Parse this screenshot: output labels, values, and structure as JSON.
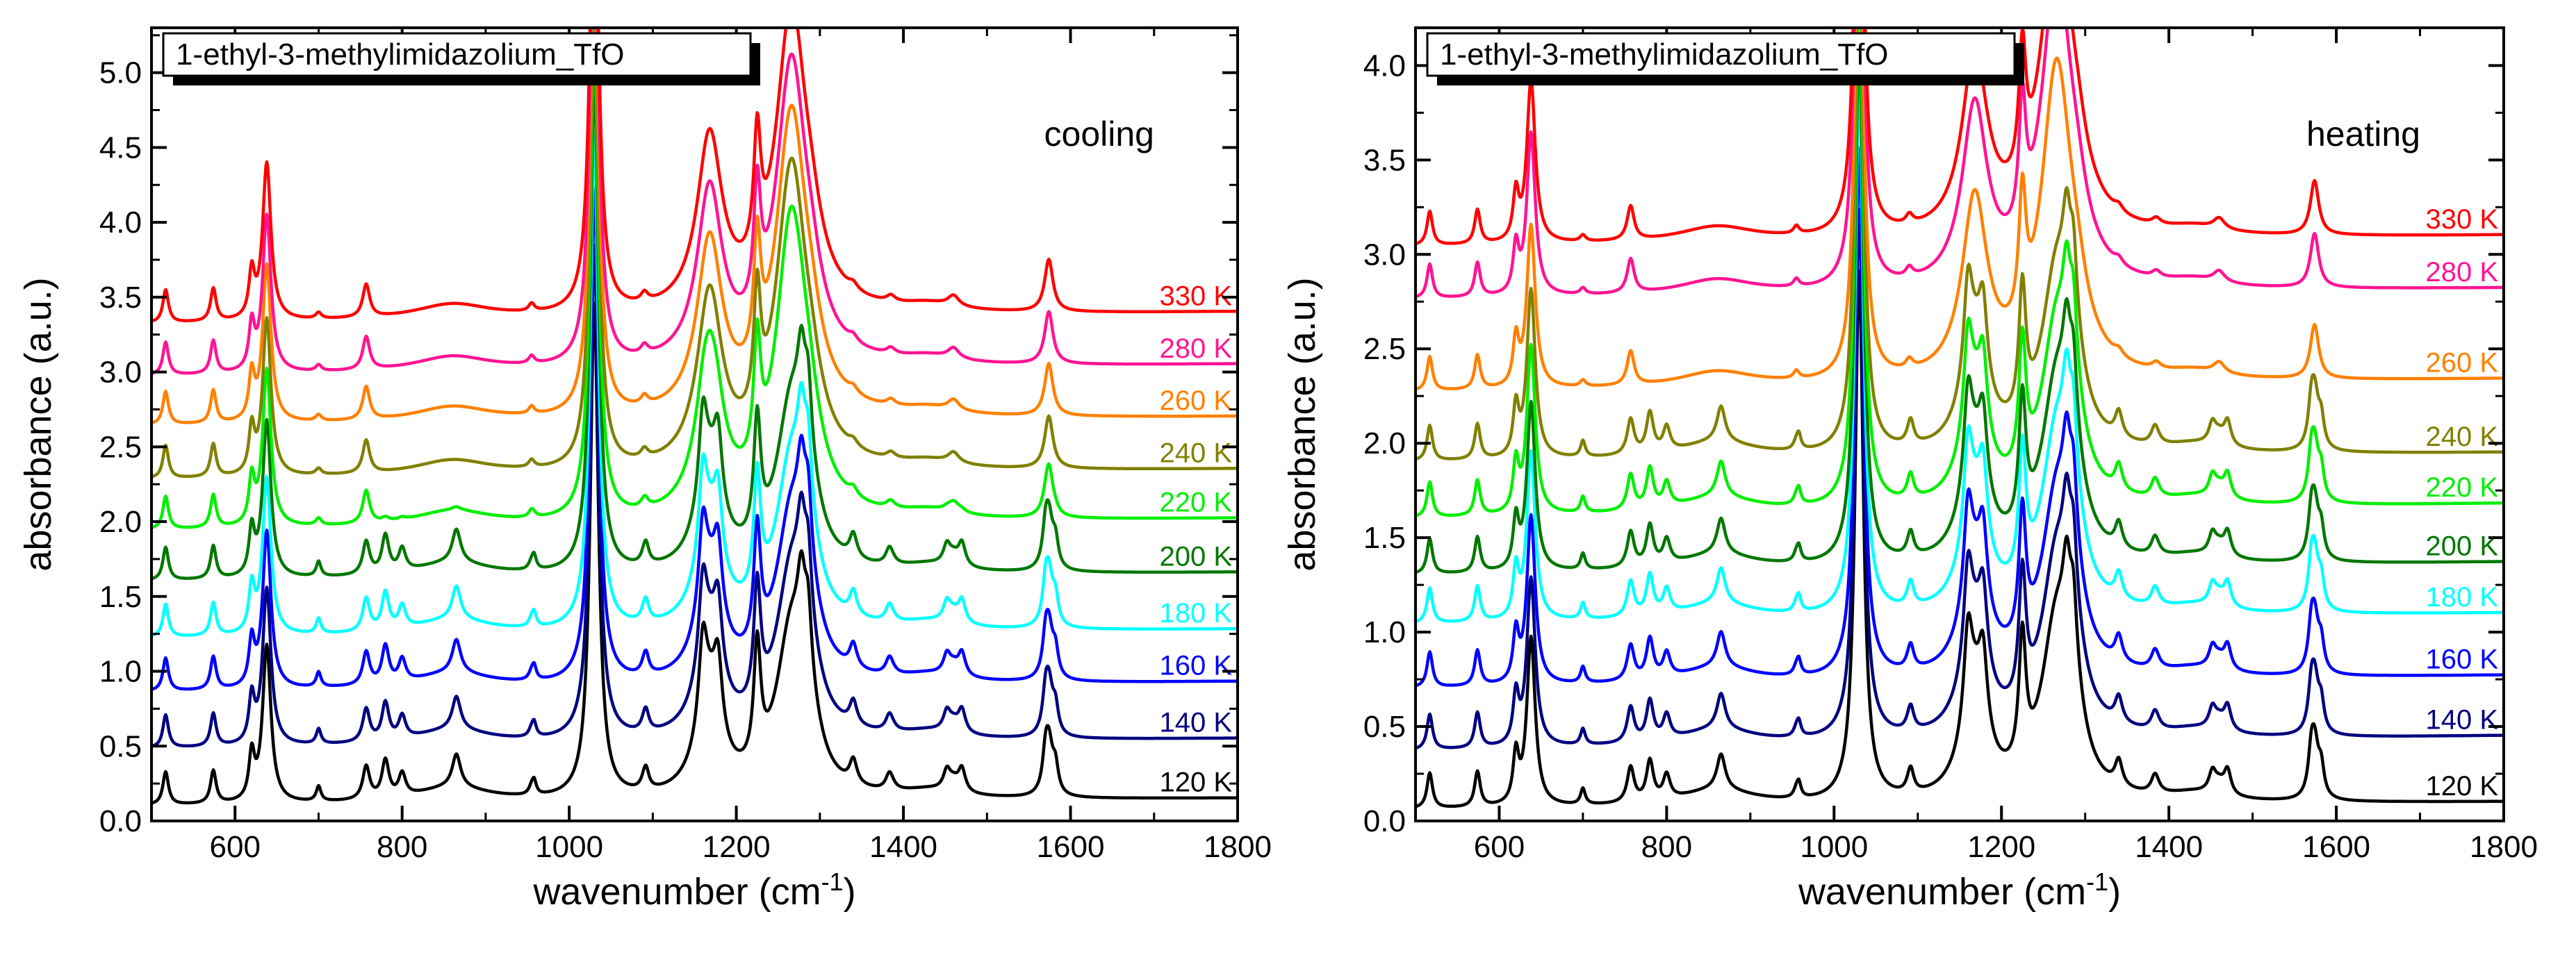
{
  "chart_data": [
    {
      "type": "line",
      "title": "1-ethyl-3-methylimidazolium_TfO",
      "mode_label": "cooling",
      "xlabel": "wavenumber (cm",
      "xlabel_sup": "-1",
      "xlabel_close": ")",
      "ylabel": "absorbance (a.u.)",
      "xlim": [
        500,
        1800
      ],
      "ylim": [
        0,
        5.3
      ],
      "xticks": [
        600,
        800,
        1000,
        1200,
        1400,
        1600,
        1800
      ],
      "yticks": [
        0.0,
        0.5,
        1.0,
        1.5,
        2.0,
        2.5,
        3.0,
        3.5,
        4.0,
        4.5,
        5.0
      ],
      "ytick_labels": [
        "0.0",
        "0.5",
        "1.0",
        "1.5",
        "2.0",
        "2.5",
        "3.0",
        "3.5",
        "4.0",
        "4.5",
        "5.0"
      ],
      "grid": false,
      "series": [
        {
          "name": "120 K",
          "color": "#000000",
          "offset": 0.1,
          "tail": 0.15,
          "crystalline": 1.0,
          "scale": 1.0
        },
        {
          "name": "140 K",
          "color": "#000080",
          "offset": 0.48,
          "tail": 0.55,
          "crystalline": 1.0,
          "scale": 1.0
        },
        {
          "name": "160 K",
          "color": "#0000ff",
          "offset": 0.86,
          "tail": 0.93,
          "crystalline": 1.0,
          "scale": 1.0
        },
        {
          "name": "180 K",
          "color": "#00ffff",
          "offset": 1.22,
          "tail": 1.28,
          "crystalline": 1.0,
          "scale": 1.0
        },
        {
          "name": "200 K",
          "color": "#007700",
          "offset": 1.6,
          "tail": 1.66,
          "crystalline": 1.0,
          "scale": 1.0
        },
        {
          "name": "220 K",
          "color": "#00ee00",
          "offset": 1.94,
          "tail": 2.02,
          "crystalline": 0.1,
          "scale": 1.0
        },
        {
          "name": "240 K",
          "color": "#808000",
          "offset": 2.28,
          "tail": 2.35,
          "crystalline": 0.0,
          "scale": 1.0
        },
        {
          "name": "260 K",
          "color": "#ff8000",
          "offset": 2.64,
          "tail": 2.7,
          "crystalline": 0.0,
          "scale": 1.0
        },
        {
          "name": "280 K",
          "color": "#ff1493",
          "offset": 2.97,
          "tail": 3.05,
          "crystalline": 0.0,
          "scale": 1.0
        },
        {
          "name": "330 K",
          "color": "#ff0000",
          "offset": 3.32,
          "tail": 3.4,
          "crystalline": 0.0,
          "scale": 1.0
        }
      ]
    },
    {
      "type": "line",
      "title": "1-ethyl-3-methylimidazolium_TfO",
      "mode_label": "heating",
      "xlabel": "wavenumber (cm",
      "xlabel_sup": "-1",
      "xlabel_close": ")",
      "ylabel": "absorbance (a.u.)",
      "xlim": [
        500,
        1800
      ],
      "ylim": [
        0,
        4.2
      ],
      "xticks": [
        600,
        800,
        1000,
        1200,
        1400,
        1600,
        1800
      ],
      "yticks": [
        0.0,
        0.5,
        1.0,
        1.5,
        2.0,
        2.5,
        3.0,
        3.5,
        4.0
      ],
      "ytick_labels": [
        "0.0",
        "0.5",
        "1.0",
        "1.5",
        "2.0",
        "2.5",
        "3.0",
        "3.5",
        "4.0"
      ],
      "grid": false,
      "series": [
        {
          "name": "120 K",
          "color": "#000000",
          "offset": 0.06,
          "tail": 0.1,
          "crystalline": 1.0,
          "scale": 0.85
        },
        {
          "name": "140 K",
          "color": "#000080",
          "offset": 0.37,
          "tail": 0.45,
          "crystalline": 1.0,
          "scale": 0.85
        },
        {
          "name": "160 K",
          "color": "#0000ff",
          "offset": 0.7,
          "tail": 0.77,
          "crystalline": 1.0,
          "scale": 0.85
        },
        {
          "name": "180 K",
          "color": "#00ffff",
          "offset": 1.04,
          "tail": 1.1,
          "crystalline": 1.0,
          "scale": 0.85
        },
        {
          "name": "200 K",
          "color": "#007700",
          "offset": 1.3,
          "tail": 1.37,
          "crystalline": 1.0,
          "scale": 0.85
        },
        {
          "name": "220 K",
          "color": "#00ee00",
          "offset": 1.6,
          "tail": 1.68,
          "crystalline": 1.0,
          "scale": 0.85
        },
        {
          "name": "240 K",
          "color": "#808000",
          "offset": 1.9,
          "tail": 1.95,
          "crystalline": 1.0,
          "scale": 0.85
        },
        {
          "name": "260 K",
          "color": "#ff8000",
          "offset": 2.27,
          "tail": 2.34,
          "crystalline": 0.0,
          "scale": 0.82
        },
        {
          "name": "280 K",
          "color": "#ff1493",
          "offset": 2.76,
          "tail": 2.82,
          "crystalline": 0.0,
          "scale": 0.82
        },
        {
          "name": "330 K",
          "color": "#ff0000",
          "offset": 3.04,
          "tail": 3.1,
          "crystalline": 0.0,
          "scale": 0.82
        }
      ]
    }
  ]
}
